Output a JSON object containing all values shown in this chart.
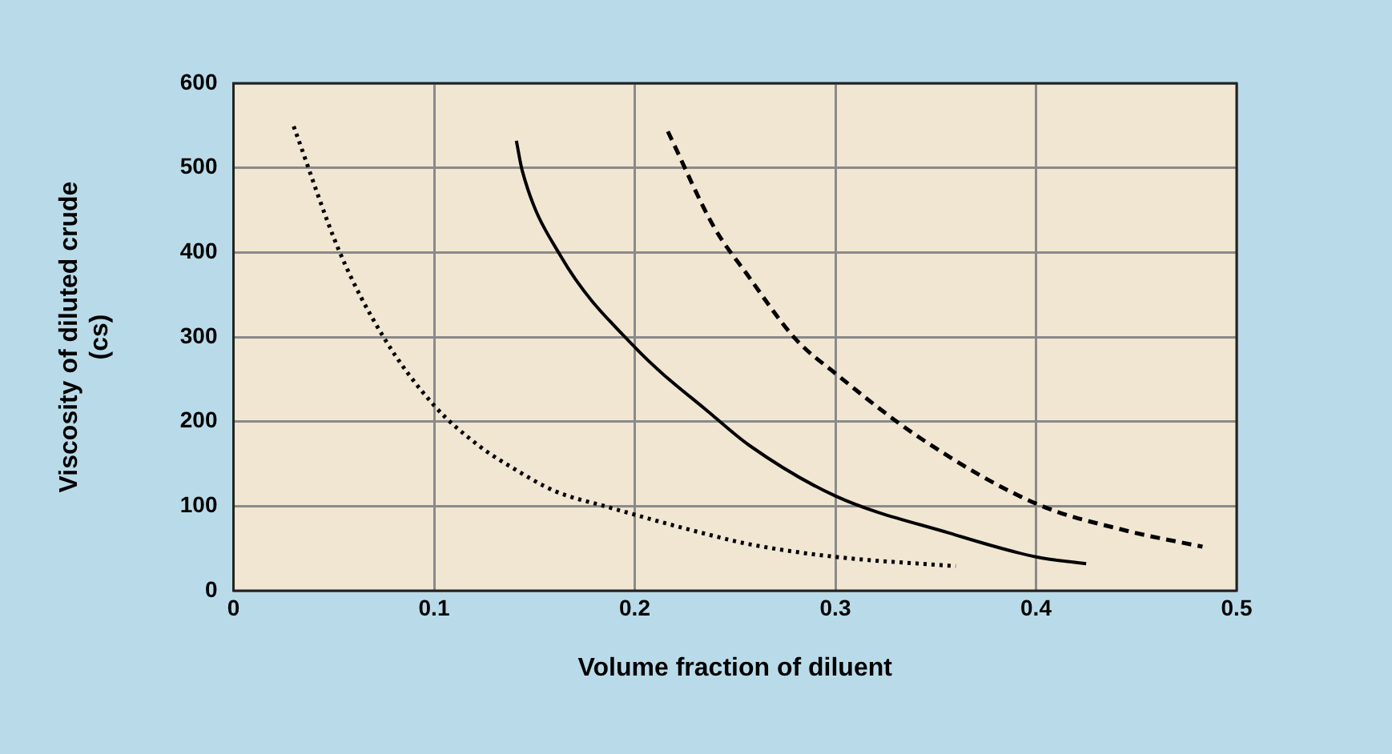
{
  "chart_data": {
    "type": "line",
    "xlabel": "Volume fraction of diluent",
    "ylabel": "Viscosity of diluted crude\n(cs)",
    "xlim": [
      0,
      0.5
    ],
    "xticks": [
      0,
      0.1,
      0.2,
      0.3,
      0.4,
      0.5
    ],
    "ylim": [
      0,
      600
    ],
    "yticks": [
      0,
      100,
      200,
      300,
      400,
      500,
      600
    ],
    "grid": true,
    "legend": false,
    "marker": "none",
    "series": [
      {
        "color": "#000000",
        "line_style": "dotted",
        "x": [
          0.03,
          0.053,
          0.0745,
          0.1,
          0.122,
          0.14,
          0.16,
          0.1865,
          0.239,
          0.257,
          0.3,
          0.36
        ],
        "values": [
          549,
          400,
          301,
          219,
          172,
          144,
          118,
          99,
          65,
          55,
          40,
          29
        ]
      },
      {
        "color": "#000000",
        "line_style": "solid",
        "x": [
          0.141,
          0.144,
          0.163,
          0.2,
          0.239,
          0.257,
          0.3,
          0.357,
          0.4,
          0.425
        ],
        "values": [
          532,
          496,
          396,
          288,
          207,
          172,
          112,
          68,
          40,
          32
        ]
      },
      {
        "color": "#000000",
        "line_style": "dashed",
        "x": [
          0.2165,
          0.2395,
          0.256,
          0.28,
          0.3,
          0.342,
          0.4,
          0.445,
          0.483
        ],
        "values": [
          543,
          430,
          374,
          298,
          257,
          181,
          103,
          71,
          52
        ]
      }
    ]
  }
}
